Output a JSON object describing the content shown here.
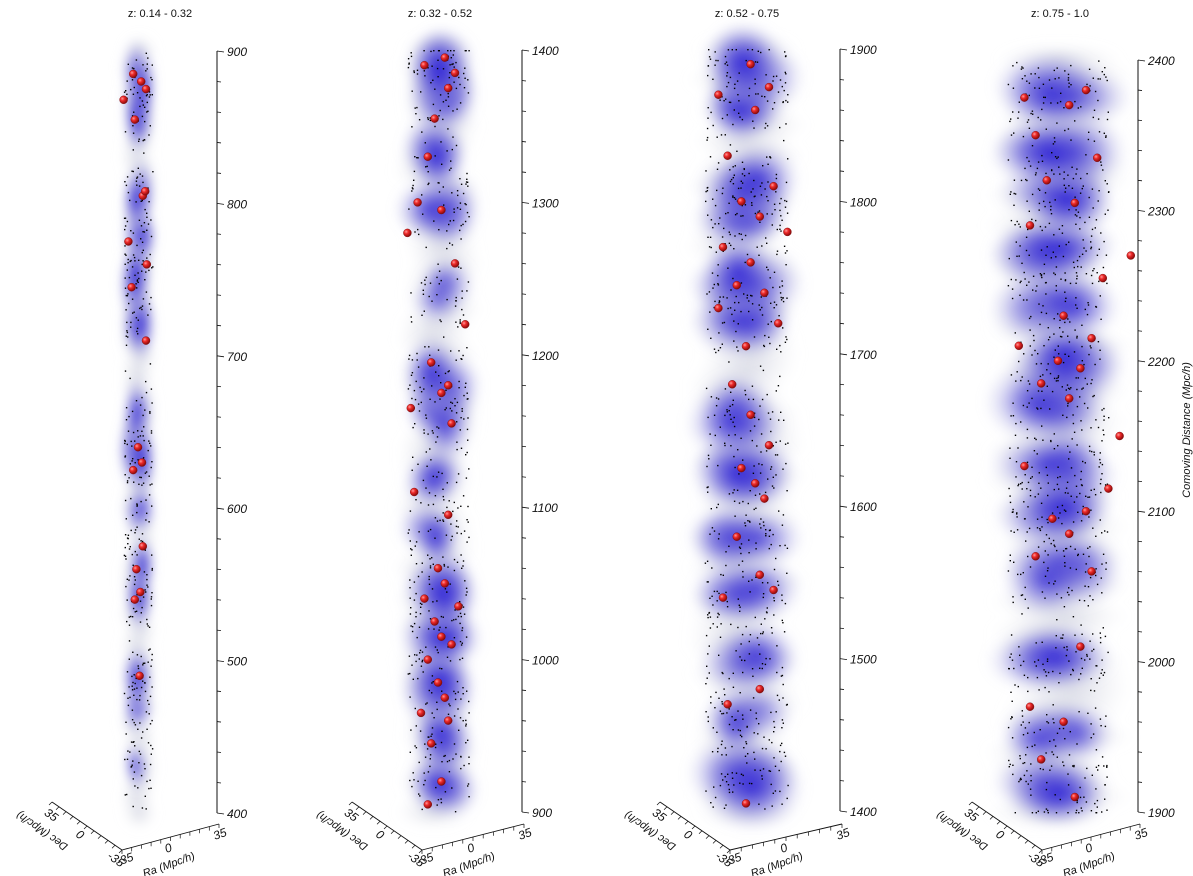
{
  "chart_data": {
    "type": "scatter",
    "description_colors": {
      "halo_points": "#000000",
      "cluster_spheres": "#e02020",
      "density_cloud": "#3a2be0"
    },
    "shared_axes": {
      "ra_label": "Ra (Mpc/h)",
      "dec_label": "Dec (Mpc/h)",
      "ra_ticks": [
        "-35",
        "0",
        "35"
      ],
      "dec_ticks": [
        "35",
        "0",
        "-35"
      ],
      "distance_label": "Comoving Distance (Mpc/h)"
    },
    "panels": [
      {
        "title": "z: 0.14 - 0.32",
        "distance_range": [
          400,
          900
        ],
        "distance_ticks": [
          400,
          500,
          600,
          700,
          800,
          900
        ],
        "show_distance_label": false,
        "density_clumps": [
          [
            430,
            0.25
          ],
          [
            470,
            0.35
          ],
          [
            490,
            0.6
          ],
          [
            540,
            0.55
          ],
          [
            560,
            0.5
          ],
          [
            600,
            0.4
          ],
          [
            635,
            0.95
          ],
          [
            660,
            0.6
          ],
          [
            720,
            0.8
          ],
          [
            750,
            0.85
          ],
          [
            775,
            0.6
          ],
          [
            805,
            0.75
          ],
          [
            860,
            0.9
          ],
          [
            880,
            0.8
          ]
        ],
        "clusters_distance": [
          490,
          540,
          545,
          560,
          575,
          625,
          630,
          640,
          710,
          745,
          760,
          775,
          805,
          808,
          855,
          868,
          875,
          880,
          885
        ],
        "clusters_offset": [
          0.1,
          -0.2,
          0.15,
          -0.1,
          0.3,
          -0.3,
          0.25,
          0.0,
          0.5,
          -0.4,
          0.55,
          -0.6,
          0.3,
          0.45,
          -0.2,
          -0.9,
          0.5,
          0.2,
          -0.3
        ]
      },
      {
        "title": "z: 0.32 - 0.52",
        "distance_range": [
          900,
          1400
        ],
        "distance_ticks": [
          900,
          1000,
          1100,
          1200,
          1300,
          1400
        ],
        "show_distance_label": false,
        "density_clumps": [
          [
            920,
            0.7
          ],
          [
            950,
            0.85
          ],
          [
            985,
            0.95
          ],
          [
            1020,
            0.95
          ],
          [
            1045,
            0.9
          ],
          [
            1080,
            0.55
          ],
          [
            1120,
            0.55
          ],
          [
            1160,
            0.8
          ],
          [
            1185,
            0.85
          ],
          [
            1240,
            0.45
          ],
          [
            1290,
            0.8
          ],
          [
            1330,
            0.75
          ],
          [
            1370,
            0.85
          ],
          [
            1390,
            0.9
          ]
        ],
        "clusters_distance": [
          905,
          920,
          945,
          960,
          965,
          975,
          985,
          1000,
          1010,
          1015,
          1025,
          1035,
          1040,
          1050,
          1060,
          1095,
          1110,
          1155,
          1165,
          1175,
          1180,
          1195,
          1220,
          1260,
          1280,
          1295,
          1300,
          1330,
          1355,
          1375,
          1385,
          1390,
          1395
        ],
        "clusters_offset": [
          -0.3,
          0.1,
          -0.2,
          0.3,
          -0.5,
          0.2,
          0.0,
          -0.3,
          0.4,
          0.1,
          -0.1,
          0.6,
          -0.4,
          0.2,
          0.0,
          0.3,
          -0.7,
          0.4,
          -0.8,
          0.1,
          0.3,
          -0.2,
          0.8,
          0.5,
          -0.9,
          0.1,
          -0.6,
          -0.3,
          -0.1,
          0.3,
          0.5,
          -0.4,
          0.2
        ]
      },
      {
        "title": "z: 0.52 - 0.75",
        "distance_range": [
          1400,
          1900
        ],
        "distance_ticks": [
          1400,
          1500,
          1600,
          1700,
          1800,
          1900
        ],
        "show_distance_label": false,
        "density_clumps": [
          [
            1420,
            0.95
          ],
          [
            1460,
            0.6
          ],
          [
            1500,
            0.65
          ],
          [
            1540,
            0.7
          ],
          [
            1580,
            0.8
          ],
          [
            1620,
            0.95
          ],
          [
            1660,
            0.75
          ],
          [
            1720,
            0.95
          ],
          [
            1750,
            0.95
          ],
          [
            1790,
            0.9
          ],
          [
            1810,
            0.85
          ],
          [
            1860,
            0.95
          ],
          [
            1885,
            0.9
          ]
        ],
        "clusters_distance": [
          1405,
          1470,
          1480,
          1540,
          1545,
          1555,
          1580,
          1605,
          1615,
          1625,
          1640,
          1660,
          1680,
          1705,
          1720,
          1730,
          1740,
          1745,
          1760,
          1770,
          1780,
          1790,
          1800,
          1810,
          1830,
          1860,
          1870,
          1875,
          1890
        ],
        "clusters_offset": [
          0.0,
          -0.4,
          0.3,
          -0.5,
          0.6,
          0.3,
          -0.2,
          0.4,
          0.2,
          -0.1,
          0.5,
          0.1,
          -0.3,
          0.0,
          0.7,
          -0.6,
          0.4,
          -0.2,
          0.1,
          -0.5,
          0.9,
          0.3,
          -0.1,
          0.6,
          -0.4,
          0.2,
          -0.6,
          0.5,
          0.1
        ]
      },
      {
        "title": "z: 0.75 - 1.0",
        "distance_range": [
          1900,
          2400
        ],
        "distance_ticks": [
          1900,
          2000,
          2100,
          2200,
          2300,
          2400
        ],
        "show_distance_label": true,
        "density_clumps": [
          [
            1915,
            0.85
          ],
          [
            1950,
            0.75
          ],
          [
            2000,
            0.7
          ],
          [
            2060,
            0.85
          ],
          [
            2100,
            0.95
          ],
          [
            2130,
            0.8
          ],
          [
            2170,
            0.95
          ],
          [
            2200,
            0.95
          ],
          [
            2240,
            0.8
          ],
          [
            2270,
            0.9
          ],
          [
            2310,
            0.85
          ],
          [
            2340,
            0.95
          ],
          [
            2380,
            0.8
          ]
        ],
        "clusters_distance": [
          1910,
          1935,
          1960,
          1970,
          2010,
          2060,
          2070,
          2085,
          2095,
          2100,
          2115,
          2130,
          2150,
          2175,
          2185,
          2195,
          2200,
          2210,
          2215,
          2230,
          2255,
          2270,
          2290,
          2305,
          2320,
          2335,
          2350,
          2370,
          2375,
          2380
        ],
        "clusters_offset": [
          0.3,
          -0.3,
          0.1,
          -0.5,
          0.4,
          0.6,
          -0.4,
          0.2,
          -0.1,
          0.5,
          0.9,
          -0.6,
          1.1,
          0.2,
          -0.3,
          0.4,
          0.0,
          -0.7,
          0.6,
          0.1,
          0.8,
          1.3,
          -0.5,
          0.3,
          -0.2,
          0.7,
          -0.4,
          0.2,
          -0.6,
          0.5
        ]
      }
    ]
  }
}
